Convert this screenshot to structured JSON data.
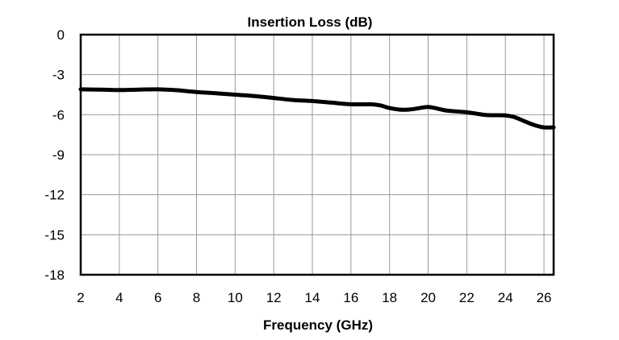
{
  "chart_data": {
    "type": "line",
    "title": "Insertion Loss (dB)",
    "xlabel": "Frequency (GHz)",
    "ylabel": "",
    "xlim": [
      2,
      26.5
    ],
    "ylim": [
      -18,
      0
    ],
    "xticks": [
      2,
      4,
      6,
      8,
      10,
      12,
      14,
      16,
      18,
      20,
      22,
      24,
      26
    ],
    "yticks": [
      0,
      -3,
      -6,
      -9,
      -12,
      -15,
      -18
    ],
    "grid": true,
    "series": [
      {
        "name": "Insertion Loss",
        "color": "#000000",
        "x": [
          2,
          3,
          4,
          5,
          6,
          7,
          8,
          9,
          10,
          11,
          12,
          13,
          14,
          15,
          16,
          17,
          17.5,
          18,
          18.5,
          19,
          19.5,
          20,
          20.5,
          21,
          22,
          23,
          24,
          24.5,
          25,
          25.5,
          26,
          26.5
        ],
        "y": [
          -4.1,
          -4.12,
          -4.15,
          -4.12,
          -4.1,
          -4.17,
          -4.3,
          -4.4,
          -4.5,
          -4.6,
          -4.75,
          -4.9,
          -4.98,
          -5.1,
          -5.22,
          -5.22,
          -5.3,
          -5.5,
          -5.62,
          -5.62,
          -5.52,
          -5.42,
          -5.55,
          -5.7,
          -5.82,
          -6.02,
          -6.05,
          -6.2,
          -6.5,
          -6.78,
          -6.95,
          -6.95
        ]
      }
    ]
  }
}
